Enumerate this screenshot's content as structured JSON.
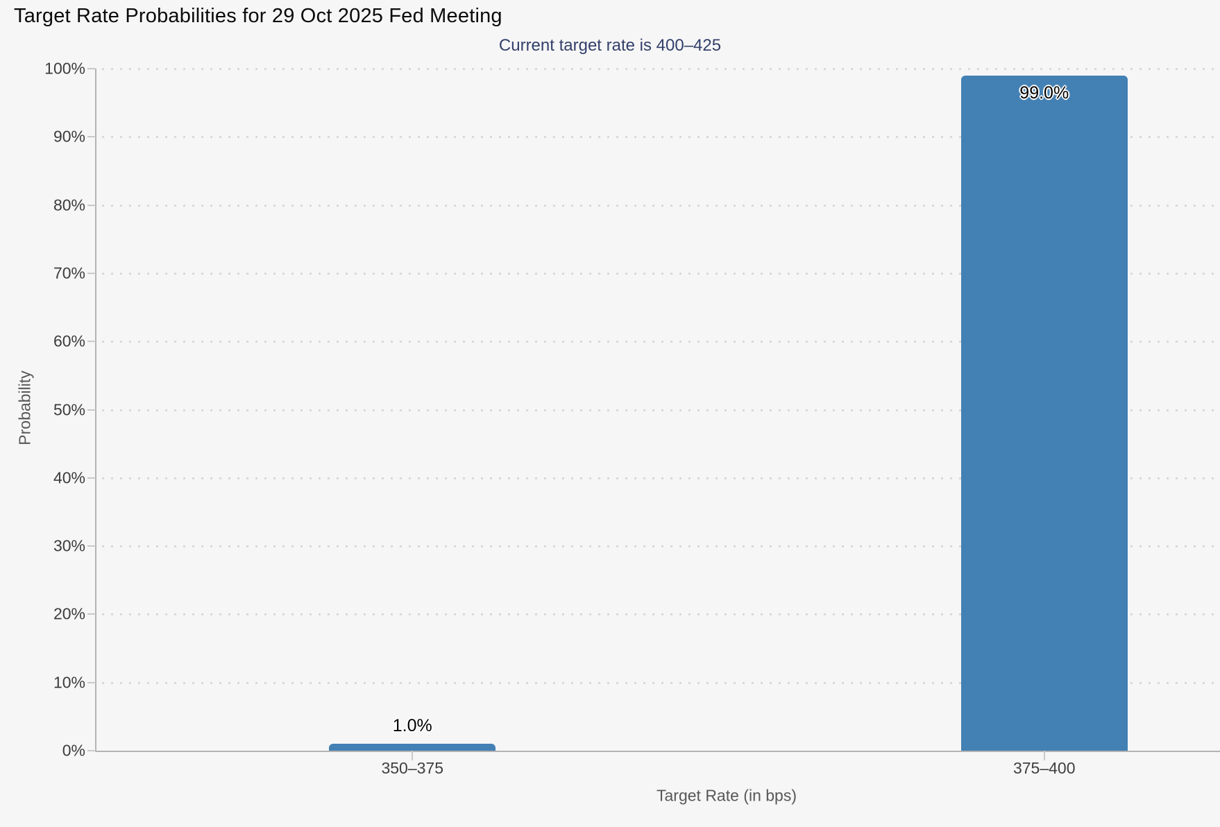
{
  "chart_data": {
    "type": "bar",
    "title": "Target Rate Probabilities for 29 Oct 2025 Fed Meeting",
    "subtitle": "Current target rate is 400–425",
    "categories": [
      "350–375",
      "375–400"
    ],
    "values": [
      1.0,
      99.0
    ],
    "value_labels": [
      "1.0%",
      "99.0%"
    ],
    "xlabel": "Target Rate (in bps)",
    "ylabel": "Probability",
    "ylim": [
      0,
      100
    ],
    "ytick_step": 10,
    "ytick_labels": [
      "0%",
      "10%",
      "20%",
      "30%",
      "40%",
      "50%",
      "60%",
      "70%",
      "80%",
      "90%",
      "100%"
    ],
    "grid": "horizontal-dotted",
    "legend": "none",
    "colors": {
      "bar": "#4380b4",
      "background": "#f6f6f6",
      "title_text": "#0a0a0a",
      "subtitle_text": "#33406b",
      "grid_dot": "#d9d9d9",
      "axis_line": "#b3b3b3",
      "tick_mark": "#c9c9c9",
      "tick_label": "#3c3c3c",
      "axis_title": "#58585a",
      "value_label": "#000000"
    }
  }
}
